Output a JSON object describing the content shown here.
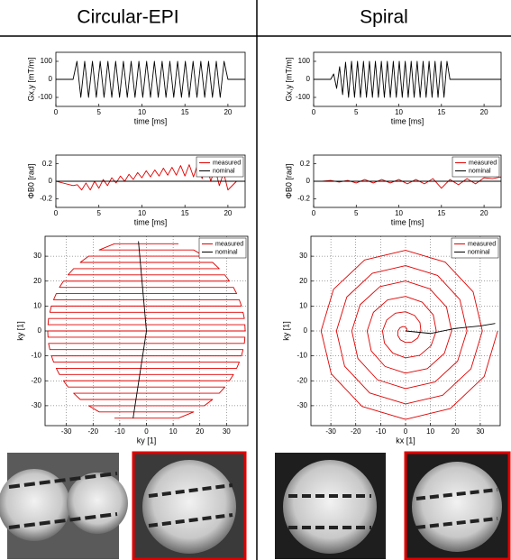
{
  "header": {
    "left": "Circular-EPI",
    "right": "Spiral"
  },
  "chart_data": [
    {
      "type": "line",
      "ylabel": "Gx,y [mT/m]",
      "xlabel": "time [ms]",
      "xlim": [
        0,
        22
      ],
      "xticks": [
        0,
        5,
        10,
        15,
        20
      ],
      "ylim": [
        -150,
        150
      ],
      "yticks": [
        -100,
        0,
        100
      ],
      "grid": false,
      "series": [
        {
          "color": "#000000",
          "x": [
            0,
            2,
            2.45,
            2.9,
            3.35,
            3.8,
            4.25,
            4.7,
            5.15,
            5.6,
            6.05,
            6.5,
            6.95,
            7.4,
            7.85,
            8.3,
            8.75,
            9.2,
            9.65,
            10.1,
            10.55,
            11,
            11.45,
            11.9,
            12.35,
            12.8,
            13.25,
            13.7,
            14.15,
            14.6,
            15.05,
            15.5,
            15.95,
            16.4,
            16.85,
            17.3,
            17.75,
            18.2,
            18.65,
            19.1,
            19.55,
            20,
            22
          ],
          "values": [
            0,
            0,
            100,
            -100,
            100,
            -100,
            100,
            -100,
            100,
            -100,
            100,
            -100,
            100,
            -100,
            100,
            -100,
            100,
            -100,
            100,
            -100,
            100,
            -100,
            100,
            -100,
            100,
            -100,
            100,
            -100,
            100,
            -100,
            100,
            -100,
            100,
            -100,
            100,
            -100,
            100,
            -100,
            100,
            -100,
            100,
            0,
            0
          ]
        }
      ]
    },
    {
      "type": "line",
      "ylabel": "Gx,y [mT/m]",
      "xlabel": "time [ms]",
      "xlim": [
        0,
        22
      ],
      "xticks": [
        0,
        5,
        10,
        15,
        20
      ],
      "ylim": [
        -150,
        150
      ],
      "yticks": [
        -100,
        0,
        100
      ],
      "grid": false,
      "series": [
        {
          "color": "#000000",
          "x": [
            0,
            2,
            2.35,
            2.7,
            3.05,
            3.4,
            3.75,
            4.1,
            4.45,
            4.8,
            5.15,
            5.5,
            5.85,
            6.2,
            6.55,
            6.9,
            7.25,
            7.6,
            7.95,
            8.3,
            8.65,
            9,
            9.35,
            9.7,
            10.05,
            10.4,
            10.75,
            11.1,
            11.45,
            11.8,
            12.15,
            12.5,
            12.85,
            13.2,
            13.55,
            13.9,
            14.25,
            14.6,
            14.95,
            15.3,
            15.65,
            16,
            22
          ],
          "values": [
            0,
            0,
            30,
            -50,
            70,
            -85,
            95,
            -100,
            100,
            -100,
            100,
            -100,
            100,
            -100,
            100,
            -100,
            100,
            -100,
            100,
            -100,
            100,
            -100,
            100,
            -100,
            100,
            -100,
            100,
            -100,
            100,
            -100,
            100,
            -100,
            100,
            -100,
            100,
            -100,
            100,
            -100,
            100,
            -100,
            100,
            0,
            0
          ]
        }
      ]
    },
    {
      "type": "line",
      "ylabel": "ΦB0 [rad]",
      "xlabel": "time [ms]",
      "xlim": [
        0,
        22
      ],
      "xticks": [
        0,
        5,
        10,
        15,
        20
      ],
      "ylim": [
        -0.3,
        0.3
      ],
      "yticks": [
        -0.2,
        0,
        0.2
      ],
      "grid": false,
      "legend": "upper right",
      "series": [
        {
          "name": "measured",
          "color": "#e00000",
          "x": [
            0,
            2,
            2.5,
            3,
            3.5,
            4,
            4.5,
            5,
            5.5,
            6,
            6.5,
            7,
            7.5,
            8,
            8.5,
            9,
            9.5,
            10,
            10.5,
            11,
            11.5,
            12,
            12.5,
            13,
            13.5,
            14,
            14.5,
            15,
            15.5,
            16,
            16.5,
            17,
            17.5,
            18,
            18.5,
            19,
            19.5,
            20,
            21,
            22
          ],
          "values": [
            0,
            -0.05,
            -0.04,
            -0.1,
            -0.02,
            -0.1,
            0,
            -0.08,
            0.02,
            -0.05,
            0.04,
            -0.02,
            0.06,
            0,
            0.08,
            0.02,
            0.1,
            0.04,
            0.12,
            0.05,
            0.13,
            0.06,
            0.15,
            0.07,
            0.16,
            0.07,
            0.18,
            0.06,
            0.19,
            0.05,
            0.2,
            0.03,
            0.2,
            0,
            0.15,
            -0.05,
            0.1,
            -0.1,
            0,
            0
          ]
        },
        {
          "name": "nominal",
          "color": "#000000",
          "x": [
            0,
            22
          ],
          "values": [
            0,
            0
          ]
        }
      ]
    },
    {
      "type": "line",
      "ylabel": "ΦB0 [rad]",
      "xlabel": "time [ms]",
      "xlim": [
        0,
        22
      ],
      "xticks": [
        0,
        5,
        10,
        15,
        20
      ],
      "ylim": [
        -0.3,
        0.3
      ],
      "yticks": [
        -0.2,
        0,
        0.2
      ],
      "grid": false,
      "legend": "upper right",
      "series": [
        {
          "name": "measured",
          "color": "#e00000",
          "x": [
            0,
            1,
            2,
            3,
            4,
            5,
            6,
            7,
            8,
            9,
            10,
            11,
            12,
            13,
            14,
            15,
            16,
            17,
            18,
            19,
            20,
            21,
            22
          ],
          "values": [
            0,
            0,
            0.01,
            -0.01,
            0.01,
            -0.02,
            0.02,
            -0.02,
            0.02,
            -0.02,
            0.02,
            -0.03,
            0.02,
            -0.03,
            0.03,
            -0.08,
            0.02,
            -0.04,
            0.03,
            -0.03,
            0.04,
            0.03,
            0.05
          ]
        },
        {
          "name": "nominal",
          "color": "#000000",
          "x": [
            0,
            22
          ],
          "values": [
            0,
            0
          ]
        }
      ]
    },
    {
      "type": "line",
      "ylabel": "ky [1]",
      "xlabel": "ky [1]",
      "xlim": [
        -38,
        38
      ],
      "xticks": [
        -30,
        -20,
        -10,
        0,
        10,
        20,
        30
      ],
      "ylim": [
        -38,
        38
      ],
      "yticks": [
        -30,
        -20,
        -10,
        0,
        10,
        20,
        30
      ],
      "grid": true,
      "legend": "upper right",
      "series": [
        {
          "name": "measured",
          "color": "#e00000",
          "x": [
            -12,
            12,
            17.7,
            -17.7,
            -21.7,
            21.7,
            24.8,
            -24.8,
            -27.3,
            27.3,
            29.4,
            -29.4,
            -31.1,
            31.1,
            32.6,
            -32.6,
            -33.8,
            33.8,
            34.8,
            -34.8,
            -35.6,
            35.6,
            36.2,
            -36.2,
            -36.7,
            36.7,
            36.9,
            -36.9,
            -37,
            37,
            36.9,
            -36.9,
            -36.7,
            36.7,
            36.2,
            -36.2,
            -35.6,
            35.6,
            34.8,
            -34.8,
            -33.8,
            33.8,
            32.6,
            -32.6,
            -31.1,
            31.1,
            29.4,
            -29.4,
            -27.3,
            27.3,
            24.8,
            -24.8,
            -21.7,
            21.7,
            17.7,
            -17.7,
            -12,
            12
          ],
          "values": [
            -35,
            -35,
            -32.5,
            -32.5,
            -30,
            -30,
            -27.5,
            -27.5,
            -25,
            -25,
            -22.5,
            -22.5,
            -20,
            -20,
            -17.5,
            -17.5,
            -15,
            -15,
            -12.5,
            -12.5,
            -10,
            -10,
            -7.5,
            -7.5,
            -5,
            -5,
            -2.5,
            -2.5,
            0,
            0,
            2.5,
            2.5,
            5,
            5,
            7.5,
            7.5,
            10,
            10,
            12.5,
            12.5,
            15,
            15,
            17.5,
            17.5,
            20,
            20,
            22.5,
            22.5,
            25,
            25,
            27.5,
            27.5,
            30,
            30,
            32.5,
            32.5,
            35,
            35
          ]
        },
        {
          "name": "nominal",
          "color": "#000000",
          "x": [
            -5,
            0,
            -3
          ],
          "values": [
            -35,
            0,
            36
          ]
        }
      ]
    },
    {
      "type": "line",
      "ylabel": "ky [1]",
      "xlabel": "kx [1]",
      "xlim": [
        -38,
        38
      ],
      "xticks": [
        -30,
        -20,
        -10,
        0,
        10,
        20,
        30
      ],
      "ylim": [
        -38,
        38
      ],
      "yticks": [
        -30,
        -20,
        -10,
        0,
        10,
        20,
        30
      ],
      "grid": true,
      "legend": "upper right",
      "series": [
        {
          "name": "measured",
          "color": "#e00000",
          "x": [
            0,
            0.45,
            0.51,
            0,
            -1.03,
            -2.23,
            -3.08,
            -3.12,
            -2.06,
            0,
            2.57,
            4.89,
            6.17,
            5.79,
            3.6,
            0,
            -4.11,
            -7.57,
            -9.25,
            -8.46,
            -5.14,
            0,
            5.66,
            10.24,
            12.34,
            11.13,
            6.68,
            0,
            -7.2,
            -12.91,
            -15.42,
            -13.8,
            -8.23,
            0,
            8.74,
            15.58,
            18.5,
            16.47,
            9.77,
            0,
            -10.28,
            -18.25,
            -21.59,
            -19.14,
            -11.31,
            0,
            11.82,
            20.92,
            24.67,
            21.81,
            12.85,
            0,
            -13.37,
            -23.59,
            -27.76,
            -24.48,
            -14.39,
            0,
            14.91,
            26.27,
            30.84,
            27.15,
            15.94,
            0,
            -16.45,
            -28.93,
            -33.92,
            -29.83,
            -17.48,
            0,
            17.99,
            31.6,
            37.01
          ],
          "values": [
            0,
            0.26,
            0.89,
            1.54,
            1.78,
            1.29,
            0,
            -1.8,
            -3.56,
            -4.63,
            -4.45,
            -2.83,
            0,
            3.34,
            6.24,
            7.71,
            7.12,
            4.37,
            0,
            -4.89,
            -8.9,
            -10.79,
            -9.8,
            -5.91,
            0,
            6.43,
            11.57,
            13.88,
            12.46,
            7.46,
            0,
            -7.97,
            -14.25,
            -16.96,
            -15.14,
            -9,
            0,
            9.51,
            16.91,
            20.05,
            17.81,
            10.54,
            0,
            -11.05,
            -19.59,
            -23.13,
            -20.47,
            -12.08,
            0,
            12.6,
            22.26,
            26.21,
            23.15,
            13.62,
            0,
            -14.14,
            -24.92,
            -29.3,
            -25.82,
            -15.17,
            0,
            15.68,
            27.6,
            32.38,
            28.49,
            16.71,
            0,
            -17.22,
            -30.27,
            -35.47,
            -31.16,
            -18.25,
            0
          ]
        },
        {
          "name": "nominal",
          "color": "#000000",
          "x": [
            0,
            10,
            20,
            30,
            36
          ],
          "values": [
            0,
            -1,
            1,
            2,
            3
          ]
        }
      ]
    }
  ]
}
